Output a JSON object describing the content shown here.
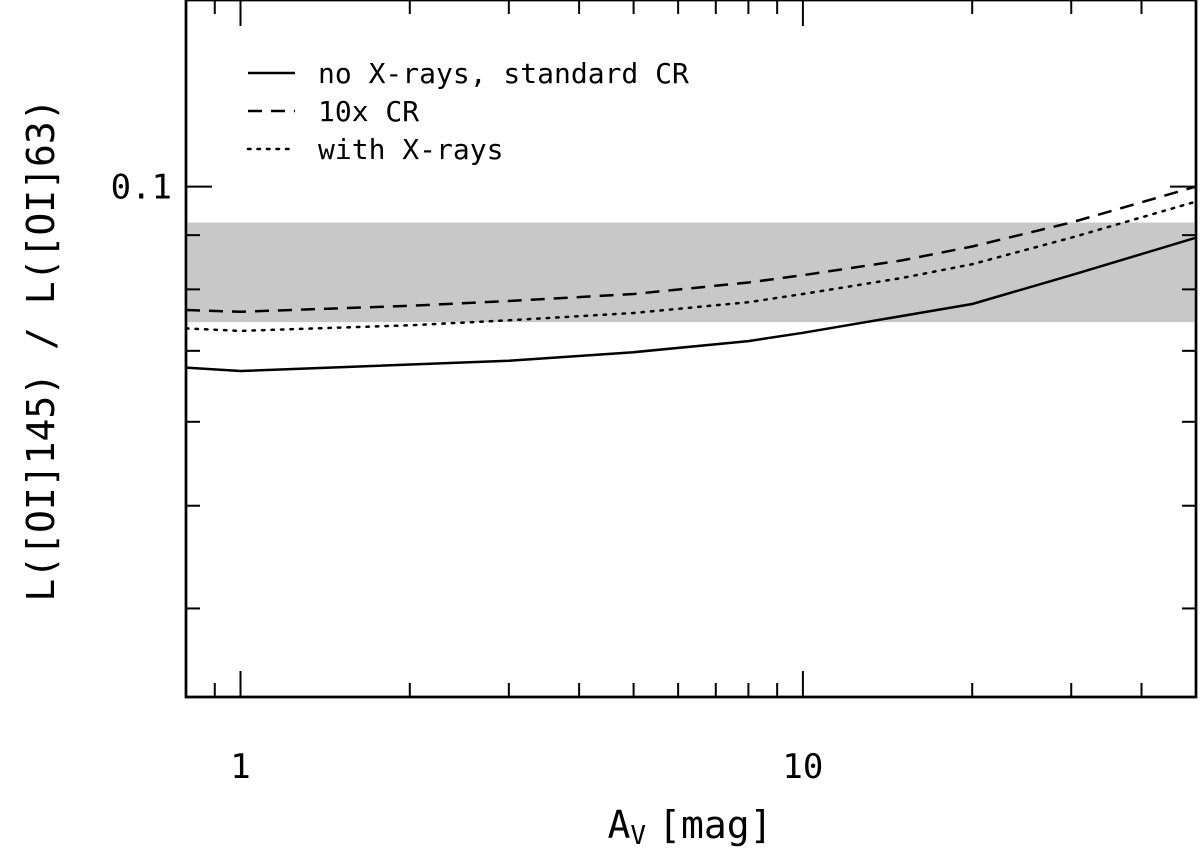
{
  "chart_data": {
    "type": "line",
    "title": "",
    "xlabel": "A",
    "xlabel_subscript": "V",
    "xlabel_unit": "[mag]",
    "ylabel": "L([OI]145) / L([OI]63)",
    "x_scale": "log",
    "y_scale": "log",
    "xlim": [
      0.8,
      50
    ],
    "ylim": [
      0.033,
      0.15
    ],
    "x_tick_labels": [
      "1",
      "10"
    ],
    "y_tick_labels": [
      "0.1"
    ],
    "shaded_band": {
      "y_range": [
        0.0745,
        0.0925
      ],
      "color": "#c8c8c8"
    },
    "legend_position": "top-left",
    "series": [
      {
        "name": "no X-rays, standard CR",
        "style": "solid",
        "x": [
          0.8,
          1,
          3,
          5,
          8,
          10,
          15,
          20,
          30,
          50
        ],
        "y": [
          0.0675,
          0.067,
          0.0685,
          0.0698,
          0.0715,
          0.0728,
          0.0755,
          0.0775,
          0.0825,
          0.0895
        ]
      },
      {
        "name": "10x CR",
        "style": "dashed",
        "x": [
          0.8,
          1,
          2,
          3,
          5,
          8,
          10,
          15,
          20,
          30,
          50
        ],
        "y": [
          0.0765,
          0.0762,
          0.0772,
          0.078,
          0.0792,
          0.0812,
          0.0825,
          0.0852,
          0.0878,
          0.0925,
          0.1
        ]
      },
      {
        "name": "with X-rays",
        "style": "dotted",
        "x": [
          0.8,
          1,
          2,
          3,
          5,
          8,
          10,
          15,
          20,
          30,
          50
        ],
        "y": [
          0.0735,
          0.0731,
          0.074,
          0.0748,
          0.076,
          0.0778,
          0.0792,
          0.082,
          0.0845,
          0.0895,
          0.0968
        ]
      }
    ]
  }
}
